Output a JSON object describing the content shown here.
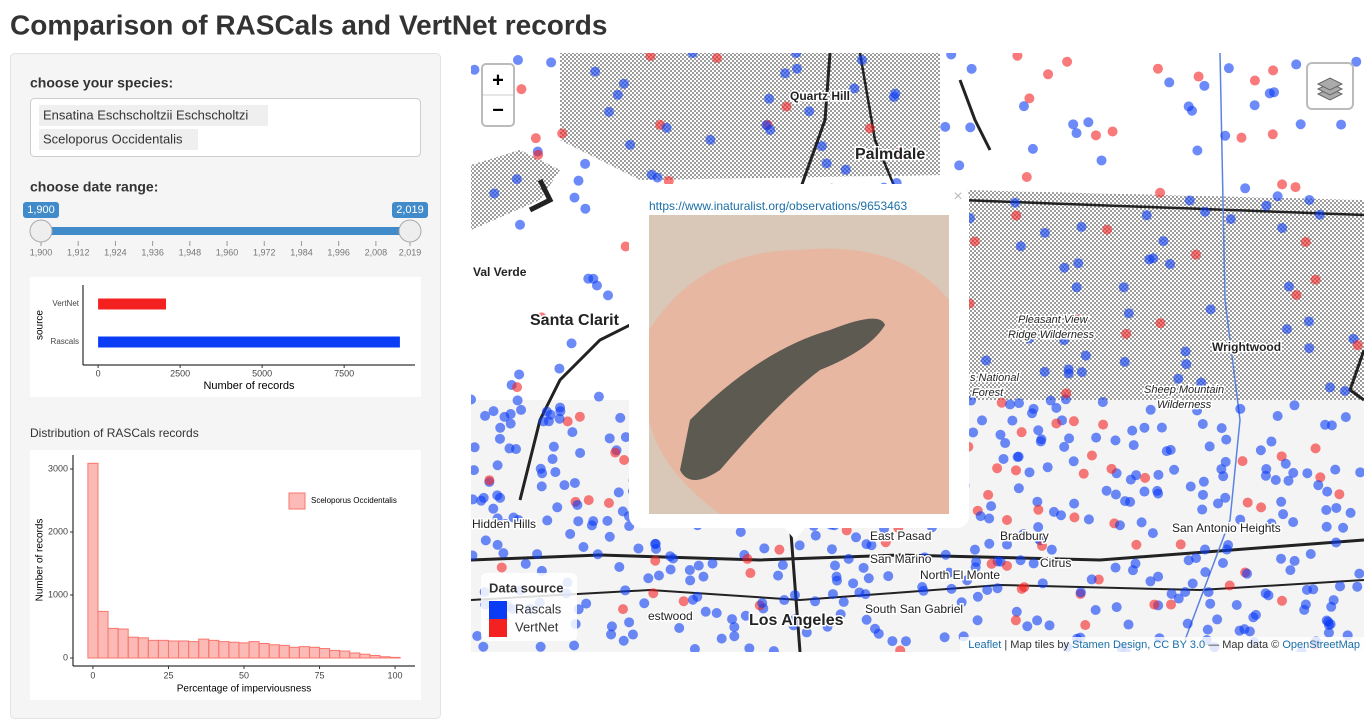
{
  "header": {
    "title": "Comparison of RASCals and VertNet records"
  },
  "sidebar": {
    "species_label": "choose your species:",
    "species": [
      "Ensatina Eschscholtzii Eschscholtzi",
      "Sceloporus Occidentalis"
    ],
    "date_label": "choose date range:",
    "slider": {
      "min": 1900,
      "max": 2019,
      "from": {
        "value": 1900,
        "label": "1,900"
      },
      "to": {
        "value": 2019,
        "label": "2,019"
      },
      "ticks": [
        {
          "value": 1900,
          "label": "1,900"
        },
        {
          "value": 1912,
          "label": "1,912"
        },
        {
          "value": 1924,
          "label": "1,924"
        },
        {
          "value": 1936,
          "label": "1,936"
        },
        {
          "value": 1948,
          "label": "1,948"
        },
        {
          "value": 1960,
          "label": "1,960"
        },
        {
          "value": 1972,
          "label": "1,972"
        },
        {
          "value": 1984,
          "label": "1,984"
        },
        {
          "value": 1996,
          "label": "1,996"
        },
        {
          "value": 2008,
          "label": "2,008"
        },
        {
          "value": 2019,
          "label": "2,019"
        }
      ]
    }
  },
  "source_chart": {
    "type": "bar",
    "categories": [
      "VertNet",
      "Rascals"
    ],
    "values": [
      2070,
      9200
    ],
    "colors": [
      "#f42121",
      "#0b3cf5"
    ],
    "xlim": [
      -460,
      9660
    ],
    "xticks": [
      0,
      2500,
      5000,
      7500
    ],
    "xlabel": "Number of records",
    "ylabel": "source"
  },
  "histogram": {
    "type": "histogram",
    "title": "Distribution of RASCals records",
    "series_name": "Sceloporus Occidentalis",
    "color": "#f8766d",
    "bins": [
      -1.67,
      1.67,
      5,
      8.33,
      11.67,
      15,
      18.33,
      21.67,
      25,
      28.33,
      31.67,
      35,
      38.33,
      41.67,
      45,
      48.33,
      51.67,
      55,
      58.33,
      61.67,
      65,
      68.33,
      71.67,
      75,
      78.33,
      81.67,
      85,
      88.33,
      91.67,
      95,
      98.33,
      101.67
    ],
    "values": [
      3090,
      740,
      470,
      460,
      330,
      320,
      280,
      280,
      270,
      270,
      260,
      300,
      280,
      260,
      250,
      240,
      260,
      230,
      210,
      200,
      170,
      180,
      170,
      150,
      120,
      110,
      80,
      60,
      40,
      20,
      10
    ],
    "xlim": [
      -6.6,
      106.6
    ],
    "ylim": [
      -127,
      3222
    ],
    "xticks": [
      0,
      25,
      50,
      75,
      100
    ],
    "yticks": [
      0,
      1000,
      2000,
      3000
    ],
    "xlabel": "Percentage of imperviousness",
    "ylabel": "Number of records"
  },
  "map": {
    "zoom_in": "+",
    "zoom_out": "−",
    "places": [
      "Quartz Hill",
      "Palmdale",
      "Val Verde",
      "Santa Clarit",
      "Pleasant View",
      "Ridge Wilderness",
      "Wrightwood",
      "s National",
      "Forest",
      "Sheep Mountain",
      "Wilderness",
      "Hidden Hills",
      "East Pasad",
      "Bradbury",
      "San Marino",
      "North El Monte",
      "Citrus",
      "San Antonio Heights",
      "South San Gabriel",
      "estwood",
      "Los Angeles"
    ],
    "popup": {
      "url": "https://www.inaturalist.org/observations/9653463",
      "close": "×"
    },
    "legend": {
      "title": "Data source",
      "items": [
        {
          "name": "Rascals",
          "color": "#0b3cf5"
        },
        {
          "name": "VertNet",
          "color": "#f42121"
        }
      ]
    },
    "attribution": [
      "Leaflet",
      " | Map tiles by ",
      "Stamen Design, CC BY 3.0",
      " — Map data © ",
      "OpenStreetMap"
    ]
  }
}
